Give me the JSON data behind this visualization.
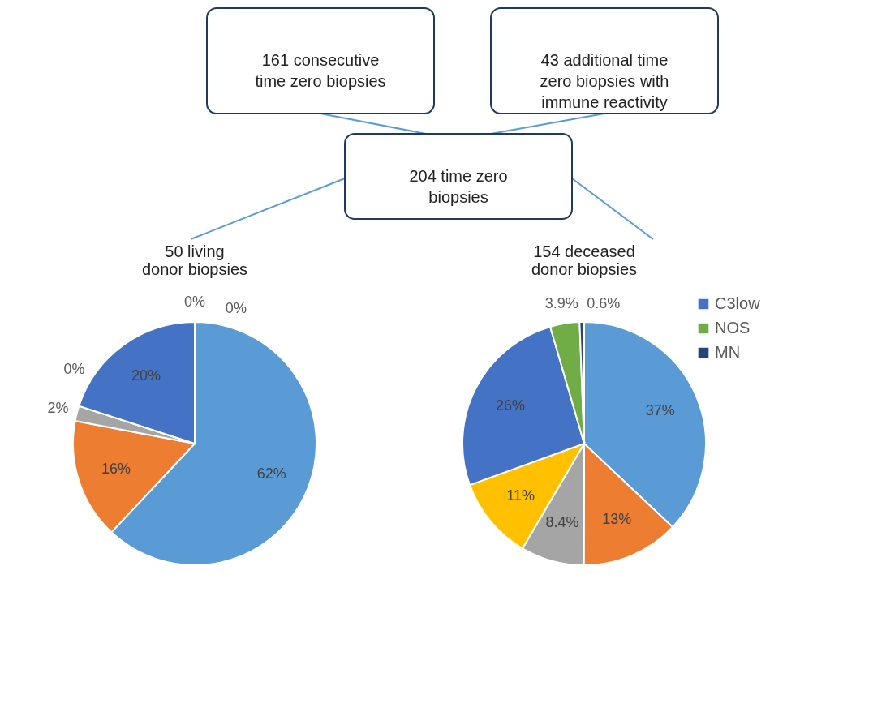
{
  "chart_data": [
    {
      "type": "other",
      "annotations": [
        "161 consecutive\ntime zero biopsies",
        "43 additional time\nzero biopsies with\nimmune reactivity",
        "204 time zero\nbiopsies"
      ]
    },
    {
      "type": "pie",
      "title": "50 living\ndonor biopsies",
      "categories": [
        null,
        null,
        null,
        null,
        null,
        null,
        null
      ],
      "values": [
        62,
        16,
        2,
        0,
        20,
        0,
        0
      ],
      "value_labels": [
        "62%",
        "16%",
        "2%",
        "0%",
        "20%",
        "0%",
        "0%"
      ],
      "colors": [
        "#5b9bd5",
        "#ed7d31",
        "#a5a5a5",
        "#ffc000",
        "#4472c4",
        "#70ad47",
        "#264478"
      ]
    },
    {
      "type": "pie",
      "title": "154 deceased\ndonor biopsies",
      "categories": [
        null,
        null,
        null,
        null,
        "C3low",
        "NOS",
        "MN"
      ],
      "values": [
        37,
        13,
        8.4,
        11,
        26,
        3.9,
        0.6
      ],
      "value_labels": [
        "37%",
        "13%",
        "8.4%",
        "11%",
        "26%",
        "3.9%",
        "0.6%"
      ],
      "colors": [
        "#5b9bd5",
        "#ed7d31",
        "#a5a5a5",
        "#ffc000",
        "#4472c4",
        "#70ad47",
        "#264478"
      ],
      "legend": "top right"
    }
  ]
}
